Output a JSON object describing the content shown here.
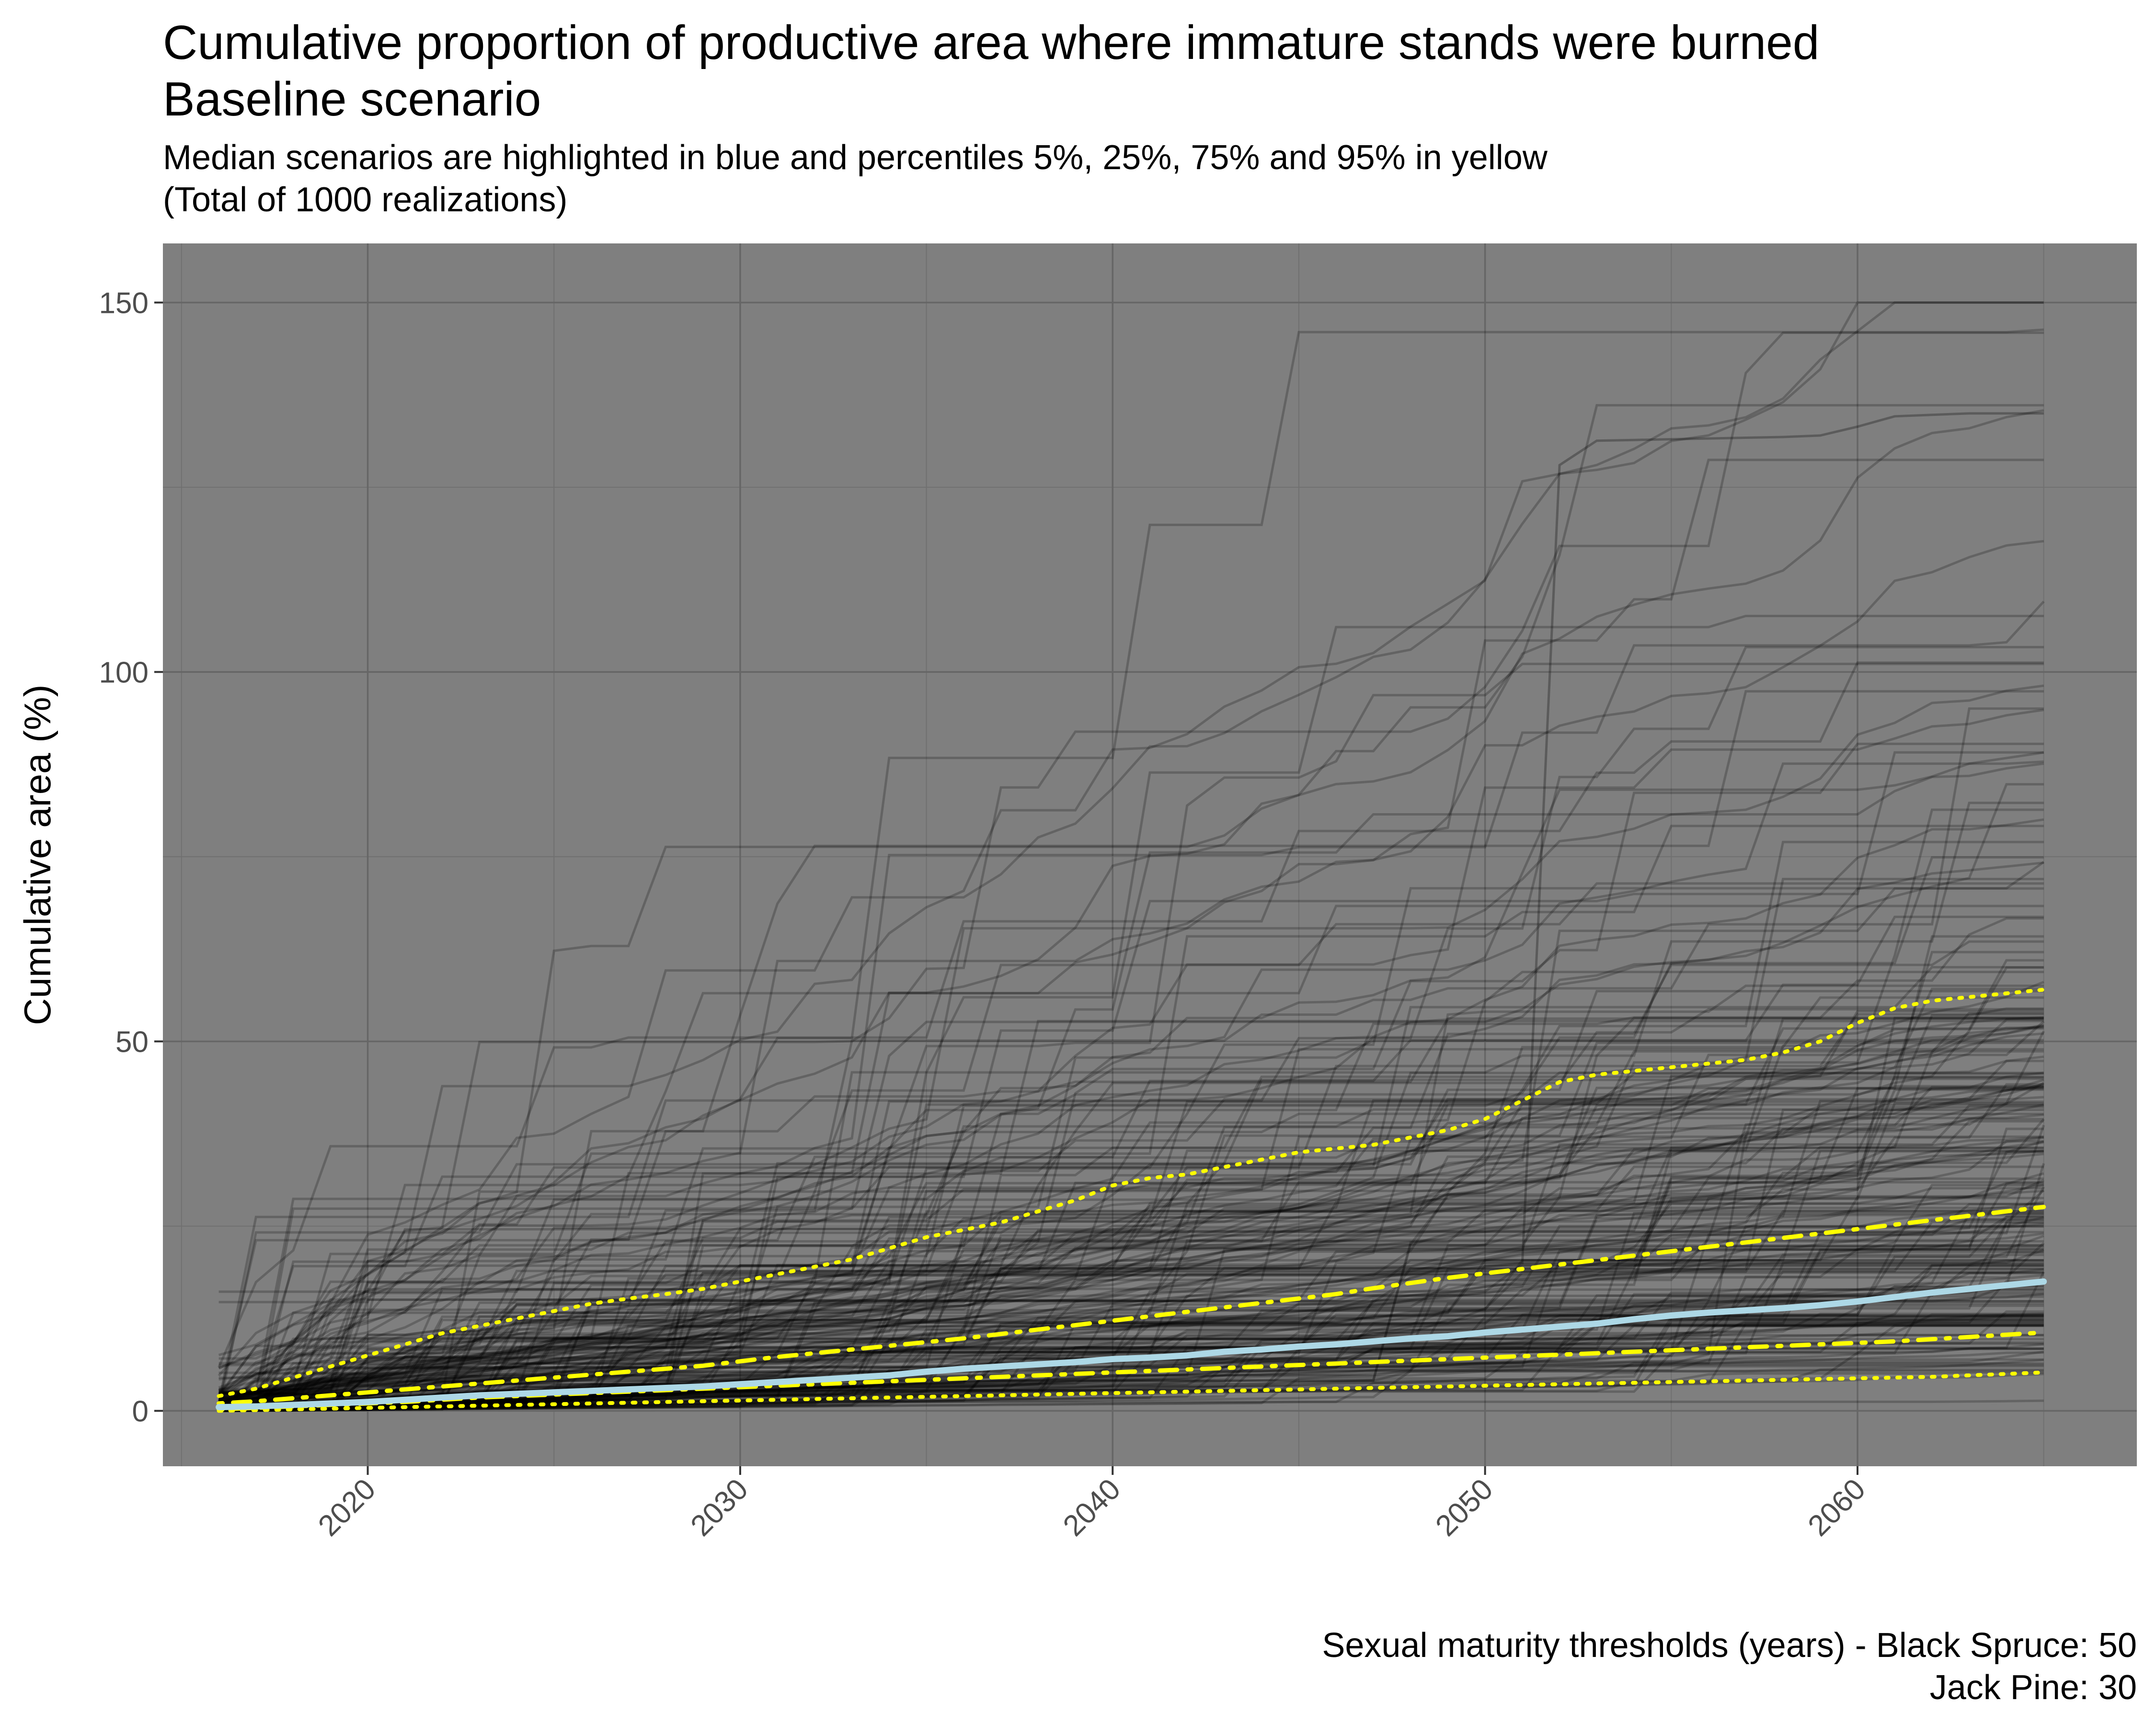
{
  "chart_data": {
    "type": "line",
    "title": [
      "Cumulative proportion of productive area where immature stands were burned",
      "Baseline scenario"
    ],
    "subtitle": [
      "Median scenarios are highlighted in blue and percentiles 5%, 25%, 75% and 95% in yellow",
      "(Total of 1000 realizations)"
    ],
    "caption": [
      "Sexual maturity thresholds (years) - Black Spruce: 50",
      "Jack Pine: 30"
    ],
    "xlabel": "",
    "ylabel": "Cumulative area (%)",
    "xlim": [
      2014.5,
      2067.5
    ],
    "ylim": [
      -7.5,
      158
    ],
    "x_ticks": [
      2020,
      2030,
      2040,
      2050,
      2060
    ],
    "y_ticks": [
      0,
      50,
      100,
      150
    ],
    "grid": true,
    "colors": {
      "panel": "#7f7f7f",
      "realization": "#000000",
      "median": "#add8e6",
      "percentile": "#ffff00"
    },
    "years": [
      2016,
      2017,
      2018,
      2019,
      2020,
      2021,
      2022,
      2023,
      2024,
      2025,
      2026,
      2027,
      2028,
      2029,
      2030,
      2031,
      2032,
      2033,
      2034,
      2035,
      2036,
      2037,
      2038,
      2039,
      2040,
      2041,
      2042,
      2043,
      2044,
      2045,
      2046,
      2047,
      2048,
      2049,
      2050,
      2051,
      2052,
      2053,
      2054,
      2055,
      2056,
      2057,
      2058,
      2059,
      2060,
      2061,
      2062,
      2063,
      2064,
      2065
    ],
    "series": [
      {
        "role": "p5",
        "style": "dotted",
        "values": [
          0,
          0.1,
          0.2,
          0.3,
          0.4,
          0.5,
          0.6,
          0.7,
          0.8,
          0.9,
          1.0,
          1.1,
          1.2,
          1.3,
          1.4,
          1.5,
          1.6,
          1.7,
          1.8,
          1.9,
          2.0,
          2.1,
          2.2,
          2.3,
          2.4,
          2.5,
          2.6,
          2.7,
          2.8,
          2.9,
          3.0,
          3.1,
          3.2,
          3.3,
          3.4,
          3.5,
          3.6,
          3.7,
          3.8,
          3.9,
          4.0,
          4.1,
          4.2,
          4.3,
          4.4,
          4.5,
          4.6,
          4.8,
          5.0,
          5.2
        ]
      },
      {
        "role": "p25",
        "style": "dotdash",
        "values": [
          0.2,
          0.4,
          0.6,
          0.8,
          1.0,
          1.2,
          1.5,
          1.8,
          2.0,
          2.2,
          2.4,
          2.6,
          2.8,
          3.0,
          3.2,
          3.4,
          3.6,
          3.8,
          4.0,
          4.2,
          4.4,
          4.6,
          4.8,
          5.0,
          5.2,
          5.4,
          5.6,
          5.8,
          6.0,
          6.2,
          6.4,
          6.6,
          6.8,
          7.0,
          7.2,
          7.4,
          7.6,
          7.8,
          8.0,
          8.2,
          8.4,
          8.6,
          8.8,
          9.0,
          9.2,
          9.4,
          9.7,
          10.0,
          10.3,
          10.6
        ]
      },
      {
        "role": "median",
        "style": "solid",
        "values": [
          0.5,
          0.6,
          0.8,
          1.0,
          1.2,
          1.5,
          1.8,
          2.1,
          2.3,
          2.5,
          2.7,
          2.9,
          3.1,
          3.3,
          3.6,
          3.9,
          4.2,
          4.5,
          4.8,
          5.3,
          5.7,
          6.0,
          6.3,
          6.6,
          7.0,
          7.2,
          7.5,
          8.0,
          8.3,
          8.7,
          9.0,
          9.4,
          9.8,
          10.1,
          10.6,
          11.0,
          11.4,
          11.8,
          12.4,
          12.9,
          13.3,
          13.6,
          13.9,
          14.3,
          14.8,
          15.4,
          16.0,
          16.5,
          17.0,
          17.5
        ]
      },
      {
        "role": "p75",
        "style": "dotdash",
        "values": [
          1.0,
          1.3,
          1.7,
          2.1,
          2.5,
          2.9,
          3.3,
          3.7,
          4.1,
          4.5,
          4.9,
          5.3,
          5.7,
          6.1,
          6.7,
          7.3,
          7.8,
          8.3,
          8.8,
          9.3,
          9.8,
          10.4,
          11.0,
          11.6,
          12.2,
          12.8,
          13.4,
          14.0,
          14.6,
          15.2,
          15.8,
          16.6,
          17.3,
          18.0,
          18.6,
          19.2,
          19.8,
          20.4,
          21.0,
          21.6,
          22.2,
          22.8,
          23.4,
          24.0,
          24.6,
          25.2,
          25.8,
          26.4,
          27.0,
          27.6
        ]
      },
      {
        "role": "p95",
        "style": "dotted",
        "values": [
          2.0,
          3.0,
          4.5,
          6.0,
          7.5,
          9.0,
          10.5,
          11.5,
          12.5,
          13.5,
          14.5,
          15.2,
          15.8,
          16.5,
          17.5,
          18.5,
          19.5,
          20.5,
          22.0,
          23.5,
          24.5,
          25.5,
          27.0,
          28.5,
          30.5,
          31.5,
          32.0,
          33.0,
          34.0,
          35.0,
          35.5,
          36.0,
          37.0,
          38.0,
          39.5,
          42.0,
          44.5,
          45.5,
          46.0,
          46.5,
          47.0,
          47.5,
          48.5,
          50.0,
          52.5,
          54.5,
          55.5,
          56.0,
          56.5,
          57.0
        ]
      }
    ]
  }
}
